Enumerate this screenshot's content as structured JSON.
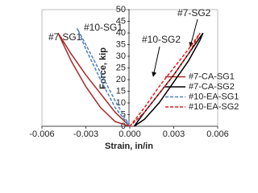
{
  "chart_data": {
    "type": "line",
    "xlabel": "Strain, in/in",
    "ylabel": "Force, kip",
    "xlim": [
      -0.006,
      0.006
    ],
    "xticks": [
      -0.006,
      -0.003,
      {
        "value": 0,
        "label": "0.000"
      },
      0.003,
      0.006
    ],
    "ylim": [
      0,
      50
    ],
    "yticks": [
      0,
      5,
      10,
      15,
      20,
      25,
      30,
      35,
      40,
      45,
      50
    ],
    "legend": "lower right",
    "grid": false,
    "annotations": [
      "#7-SG1",
      "#10-SG1",
      "#7-SG2",
      "#10-SG2"
    ],
    "series": [
      {
        "name": "#7-CA-SG1",
        "color": "#a52a2a",
        "dash": false,
        "x": [
          0,
          -0.001,
          -0.002,
          -0.003,
          -0.004,
          -0.0047,
          -0.0049,
          -0.0046,
          -0.004,
          -0.003,
          -0.002,
          -0.001,
          0
        ],
        "values": [
          0,
          6,
          14,
          22,
          31,
          38,
          40,
          36,
          28,
          17,
          8,
          2,
          0
        ]
      },
      {
        "name": "#7-CA-SG2",
        "color": "#000000",
        "dash": false,
        "x": [
          0.0003,
          0.001,
          0.002,
          0.003,
          0.004,
          0.005,
          0.0048,
          0.004,
          0.003,
          0.002,
          0.001,
          0.0003
        ],
        "values": [
          0,
          6,
          14,
          22,
          31,
          40,
          37,
          28,
          19,
          10,
          3,
          0
        ]
      },
      {
        "name": "#10-EA-SG1",
        "color": "#4f81bd",
        "dash": true,
        "x": [
          0,
          -0.001,
          -0.002,
          -0.003,
          -0.0036,
          -0.003,
          -0.002,
          -0.001,
          0
        ],
        "values": [
          0,
          11,
          23,
          35,
          42,
          33,
          20,
          8,
          0
        ]
      },
      {
        "name": "#10-EA-SG2",
        "color": "#e02020",
        "dash": true,
        "x": [
          0,
          0.001,
          0.002,
          0.003,
          0.004,
          0.0048,
          0.004,
          0.003,
          0.002,
          0.001,
          0
        ],
        "values": [
          0,
          8,
          17,
          25,
          33,
          40,
          31,
          22,
          14,
          6,
          0
        ]
      }
    ]
  }
}
